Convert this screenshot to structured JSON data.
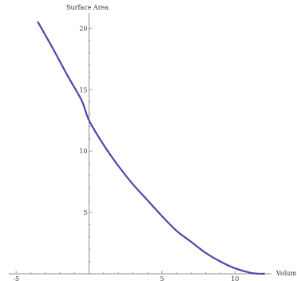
{
  "chart_data": {
    "type": "line",
    "title": "",
    "xlabel": "Volum",
    "ylabel": "Surface Area",
    "xlim": [
      -5.5,
      12.5
    ],
    "ylim": [
      0,
      21
    ],
    "x_ticks": [
      -5,
      5,
      10
    ],
    "y_ticks": [
      5,
      10,
      15,
      20
    ],
    "x_tick_labels": [
      "-5",
      "5",
      "10"
    ],
    "y_tick_labels": [
      "5",
      "10",
      "15",
      "20"
    ],
    "grid": false,
    "legend": "none",
    "series": [
      {
        "color": "#4a4aa8",
        "x": [
          -3.5,
          -2.5,
          -1.5,
          -0.5,
          0,
          1,
          2,
          3,
          4,
          5,
          6,
          7,
          8,
          9,
          10,
          11,
          11.5,
          12
        ],
        "y": [
          20.5,
          18.4,
          16.2,
          14.1,
          12.5,
          10.5,
          8.8,
          7.3,
          6.0,
          4.7,
          3.5,
          2.6,
          1.7,
          1.0,
          0.45,
          0.1,
          0.02,
          0.0
        ]
      }
    ]
  }
}
